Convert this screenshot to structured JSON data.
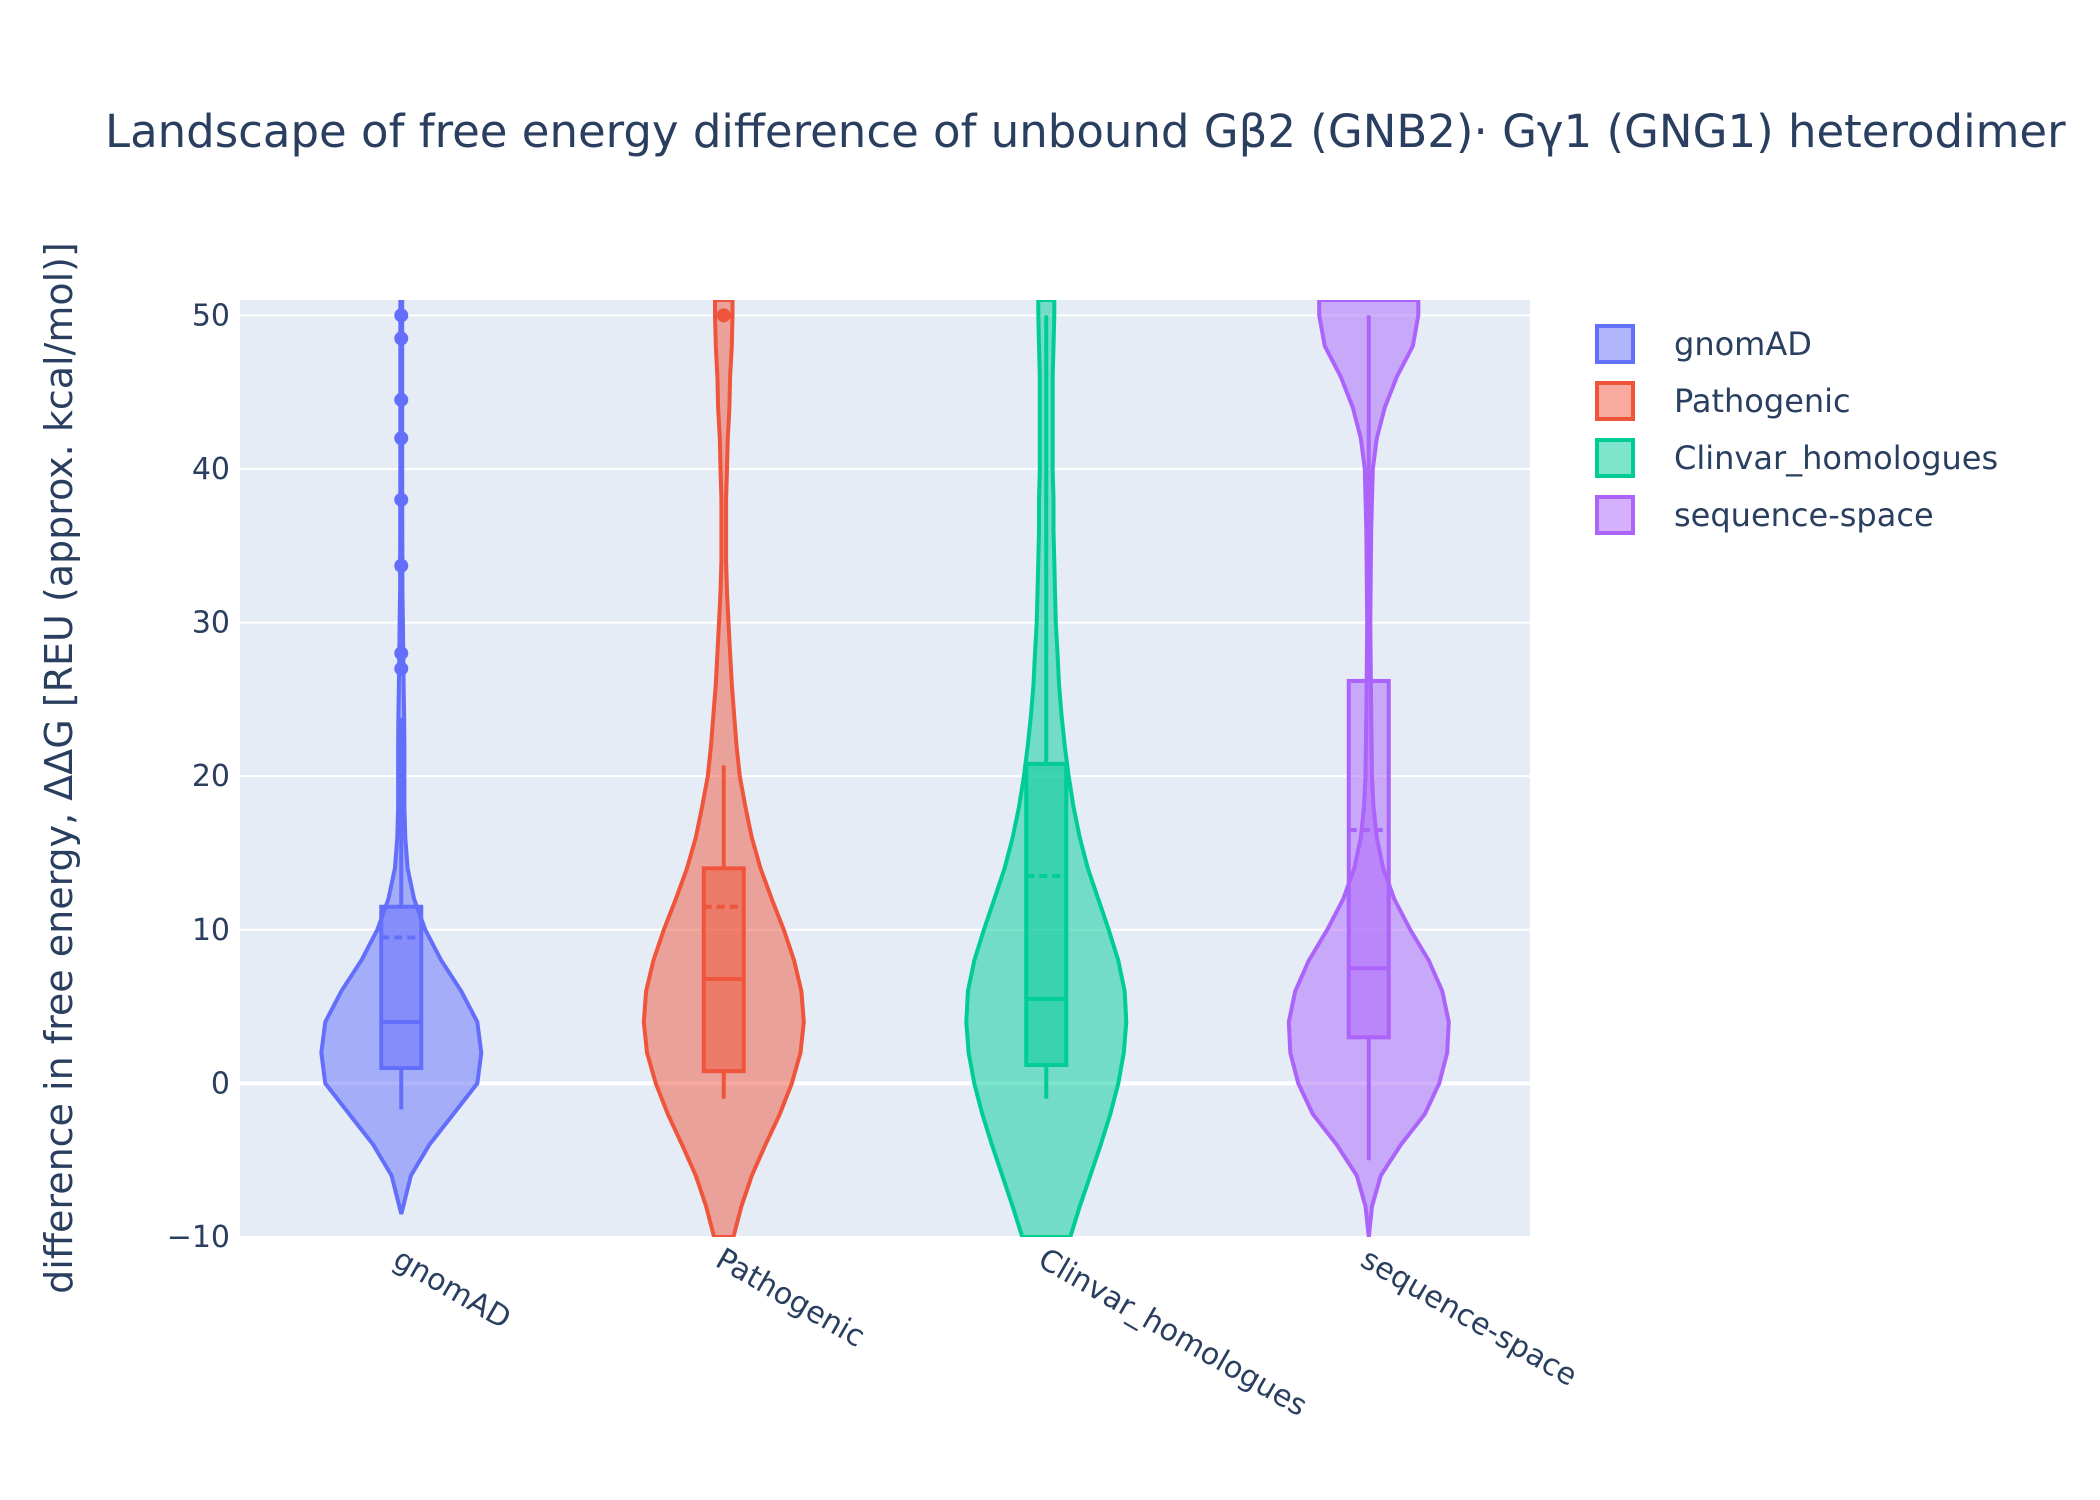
{
  "chart_data": {
    "type": "violin",
    "title": "Landscape of free energy difference of unbound Gβ2 (GNB2)· Gγ1 (GNG1) heterodimer",
    "xlabel": "",
    "ylabel": "difference in free energy, ΔΔG [REU (approx. kcal/mol)]",
    "ylim": [
      -10,
      51
    ],
    "yticks": [
      -10,
      0,
      10,
      20,
      30,
      40,
      50
    ],
    "ytick_labels": [
      "−10",
      "0",
      "10",
      "20",
      "30",
      "40",
      "50"
    ],
    "grid": true,
    "legend_position": "top-right",
    "categories": [
      "gnomAD",
      "Pathogenic",
      "Clinvar_homologues",
      "sequence-space"
    ],
    "series": [
      {
        "name": "gnomAD",
        "color": "#636efa",
        "box": {
          "q1": 1.0,
          "median": 4.0,
          "q3": 11.5,
          "mean": 9.5,
          "whisker_low": -1.7,
          "whisker_high": 23.8
        },
        "outliers": [
          27.0,
          28.0,
          33.7,
          38.0,
          42.0,
          44.5,
          48.5,
          50.0
        ],
        "density": [
          [
            -8.5,
            0.0
          ],
          [
            -6.0,
            0.12
          ],
          [
            -4.0,
            0.35
          ],
          [
            -2.0,
            0.65
          ],
          [
            0.0,
            0.95
          ],
          [
            2.0,
            1.0
          ],
          [
            4.0,
            0.95
          ],
          [
            6.0,
            0.75
          ],
          [
            8.0,
            0.5
          ],
          [
            10.0,
            0.3
          ],
          [
            12.0,
            0.16
          ],
          [
            14.0,
            0.08
          ],
          [
            16.0,
            0.05
          ],
          [
            18.0,
            0.04
          ],
          [
            20.0,
            0.04
          ],
          [
            22.0,
            0.04
          ],
          [
            24.0,
            0.035
          ],
          [
            26.0,
            0.03
          ],
          [
            28.0,
            0.025
          ],
          [
            30.0,
            0.02
          ],
          [
            32.0,
            0.015
          ],
          [
            34.0,
            0.015
          ],
          [
            36.0,
            0.013
          ],
          [
            40.0,
            0.012
          ],
          [
            44.0,
            0.012
          ],
          [
            48.0,
            0.012
          ],
          [
            51.0,
            0.012
          ]
        ]
      },
      {
        "name": "Pathogenic",
        "color": "#ef553b",
        "box": {
          "q1": 0.8,
          "median": 6.8,
          "q3": 14.0,
          "mean": 11.5,
          "whisker_low": -1.0,
          "whisker_high": 20.7
        },
        "outliers": [
          50.0
        ],
        "density": [
          [
            -10.0,
            0.12
          ],
          [
            -8.0,
            0.22
          ],
          [
            -6.0,
            0.35
          ],
          [
            -4.0,
            0.52
          ],
          [
            -2.0,
            0.7
          ],
          [
            0.0,
            0.85
          ],
          [
            2.0,
            0.96
          ],
          [
            4.0,
            1.0
          ],
          [
            6.0,
            0.97
          ],
          [
            8.0,
            0.88
          ],
          [
            10.0,
            0.75
          ],
          [
            12.0,
            0.6
          ],
          [
            14.0,
            0.46
          ],
          [
            16.0,
            0.35
          ],
          [
            18.0,
            0.27
          ],
          [
            20.0,
            0.2
          ],
          [
            22.0,
            0.16
          ],
          [
            24.0,
            0.13
          ],
          [
            26.0,
            0.1
          ],
          [
            28.0,
            0.08
          ],
          [
            30.0,
            0.06
          ],
          [
            32.0,
            0.04
          ],
          [
            34.0,
            0.03
          ],
          [
            36.0,
            0.03
          ],
          [
            38.0,
            0.03
          ],
          [
            40.0,
            0.04
          ],
          [
            42.0,
            0.05
          ],
          [
            44.0,
            0.07
          ],
          [
            46.0,
            0.08
          ],
          [
            48.0,
            0.1
          ],
          [
            50.0,
            0.11
          ],
          [
            51.0,
            0.11
          ]
        ]
      },
      {
        "name": "Clinvar_homologues",
        "color": "#00cc96",
        "box": {
          "q1": 1.2,
          "median": 5.5,
          "q3": 20.8,
          "mean": 13.5,
          "whisker_low": -1.0,
          "whisker_high": 50.0
        },
        "outliers": [],
        "density": [
          [
            -10.0,
            0.3
          ],
          [
            -8.0,
            0.42
          ],
          [
            -6.0,
            0.55
          ],
          [
            -4.0,
            0.68
          ],
          [
            -2.0,
            0.8
          ],
          [
            0.0,
            0.9
          ],
          [
            2.0,
            0.97
          ],
          [
            4.0,
            1.0
          ],
          [
            6.0,
            0.98
          ],
          [
            8.0,
            0.9
          ],
          [
            10.0,
            0.78
          ],
          [
            12.0,
            0.65
          ],
          [
            14.0,
            0.52
          ],
          [
            16.0,
            0.42
          ],
          [
            18.0,
            0.34
          ],
          [
            20.0,
            0.28
          ],
          [
            22.0,
            0.23
          ],
          [
            24.0,
            0.19
          ],
          [
            26.0,
            0.16
          ],
          [
            28.0,
            0.14
          ],
          [
            30.0,
            0.12
          ],
          [
            32.0,
            0.11
          ],
          [
            34.0,
            0.1
          ],
          [
            36.0,
            0.09
          ],
          [
            38.0,
            0.09
          ],
          [
            40.0,
            0.08
          ],
          [
            42.0,
            0.08
          ],
          [
            44.0,
            0.08
          ],
          [
            46.0,
            0.08
          ],
          [
            48.0,
            0.09
          ],
          [
            50.0,
            0.1
          ],
          [
            51.0,
            0.1
          ]
        ]
      },
      {
        "name": "sequence-space",
        "color": "#ab63fa",
        "box": {
          "q1": 3.0,
          "median": 7.5,
          "q3": 26.2,
          "mean": 16.5,
          "whisker_low": -5.0,
          "whisker_high": 50.0
        },
        "outliers": [],
        "density": [
          [
            -10.0,
            0.0
          ],
          [
            -8.0,
            0.04
          ],
          [
            -6.0,
            0.15
          ],
          [
            -4.0,
            0.4
          ],
          [
            -2.0,
            0.7
          ],
          [
            0.0,
            0.88
          ],
          [
            2.0,
            0.98
          ],
          [
            4.0,
            1.0
          ],
          [
            6.0,
            0.92
          ],
          [
            8.0,
            0.75
          ],
          [
            10.0,
            0.52
          ],
          [
            12.0,
            0.32
          ],
          [
            14.0,
            0.18
          ],
          [
            16.0,
            0.1
          ],
          [
            18.0,
            0.06
          ],
          [
            20.0,
            0.04
          ],
          [
            24.0,
            0.03
          ],
          [
            30.0,
            0.02
          ],
          [
            36.0,
            0.03
          ],
          [
            40.0,
            0.05
          ],
          [
            42.0,
            0.1
          ],
          [
            44.0,
            0.2
          ],
          [
            46.0,
            0.35
          ],
          [
            48.0,
            0.55
          ],
          [
            50.0,
            0.62
          ],
          [
            51.0,
            0.62
          ]
        ]
      }
    ]
  }
}
